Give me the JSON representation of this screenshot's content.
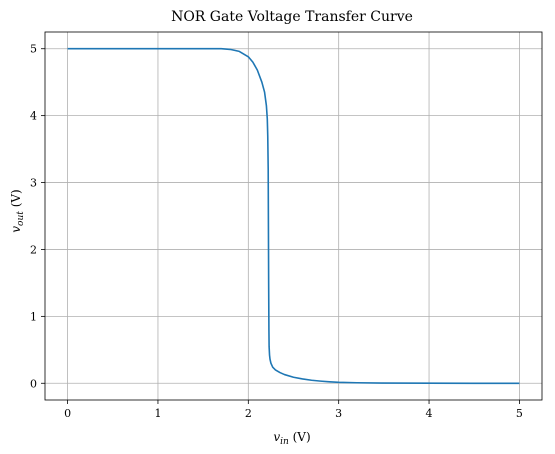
{
  "chart_data": {
    "type": "line",
    "title": "NOR Gate Voltage Transfer Curve",
    "xlabel_main": "v",
    "xlabel_sub": "in",
    "xlabel_unit": " (V)",
    "ylabel_main": "v",
    "ylabel_sub": "out",
    "ylabel_unit": " (V)",
    "xlim": [
      -0.25,
      5.25
    ],
    "ylim": [
      -0.25,
      5.25
    ],
    "xticks": [
      0,
      1,
      2,
      3,
      4,
      5
    ],
    "yticks": [
      0,
      1,
      2,
      3,
      4,
      5
    ],
    "xtick_labels": [
      "0",
      "1",
      "2",
      "3",
      "4",
      "5"
    ],
    "ytick_labels": [
      "0",
      "1",
      "2",
      "3",
      "4",
      "5"
    ],
    "grid": true,
    "line_color": "#1f77b4",
    "series": [
      {
        "x": [
          0,
          0.5,
          1.0,
          1.5,
          1.7,
          1.8,
          1.9,
          2.0,
          2.05,
          2.1,
          2.15,
          2.18,
          2.2,
          2.21,
          2.215,
          2.22,
          2.222,
          2.225,
          2.228,
          2.23,
          2.235,
          2.24,
          2.25,
          2.27,
          2.3,
          2.35,
          2.4,
          2.5,
          2.6,
          2.7,
          2.8,
          2.9,
          3.0,
          3.2,
          3.5,
          4.0,
          4.5,
          5.0
        ],
        "y": [
          5.0,
          5.0,
          5.0,
          5.0,
          5.0,
          4.99,
          4.96,
          4.88,
          4.8,
          4.68,
          4.5,
          4.35,
          4.15,
          3.95,
          3.7,
          3.2,
          2.5,
          1.5,
          0.8,
          0.55,
          0.42,
          0.36,
          0.3,
          0.24,
          0.2,
          0.16,
          0.13,
          0.09,
          0.065,
          0.045,
          0.032,
          0.022,
          0.015,
          0.008,
          0.003,
          0.001,
          0.0,
          0.0
        ]
      }
    ]
  }
}
